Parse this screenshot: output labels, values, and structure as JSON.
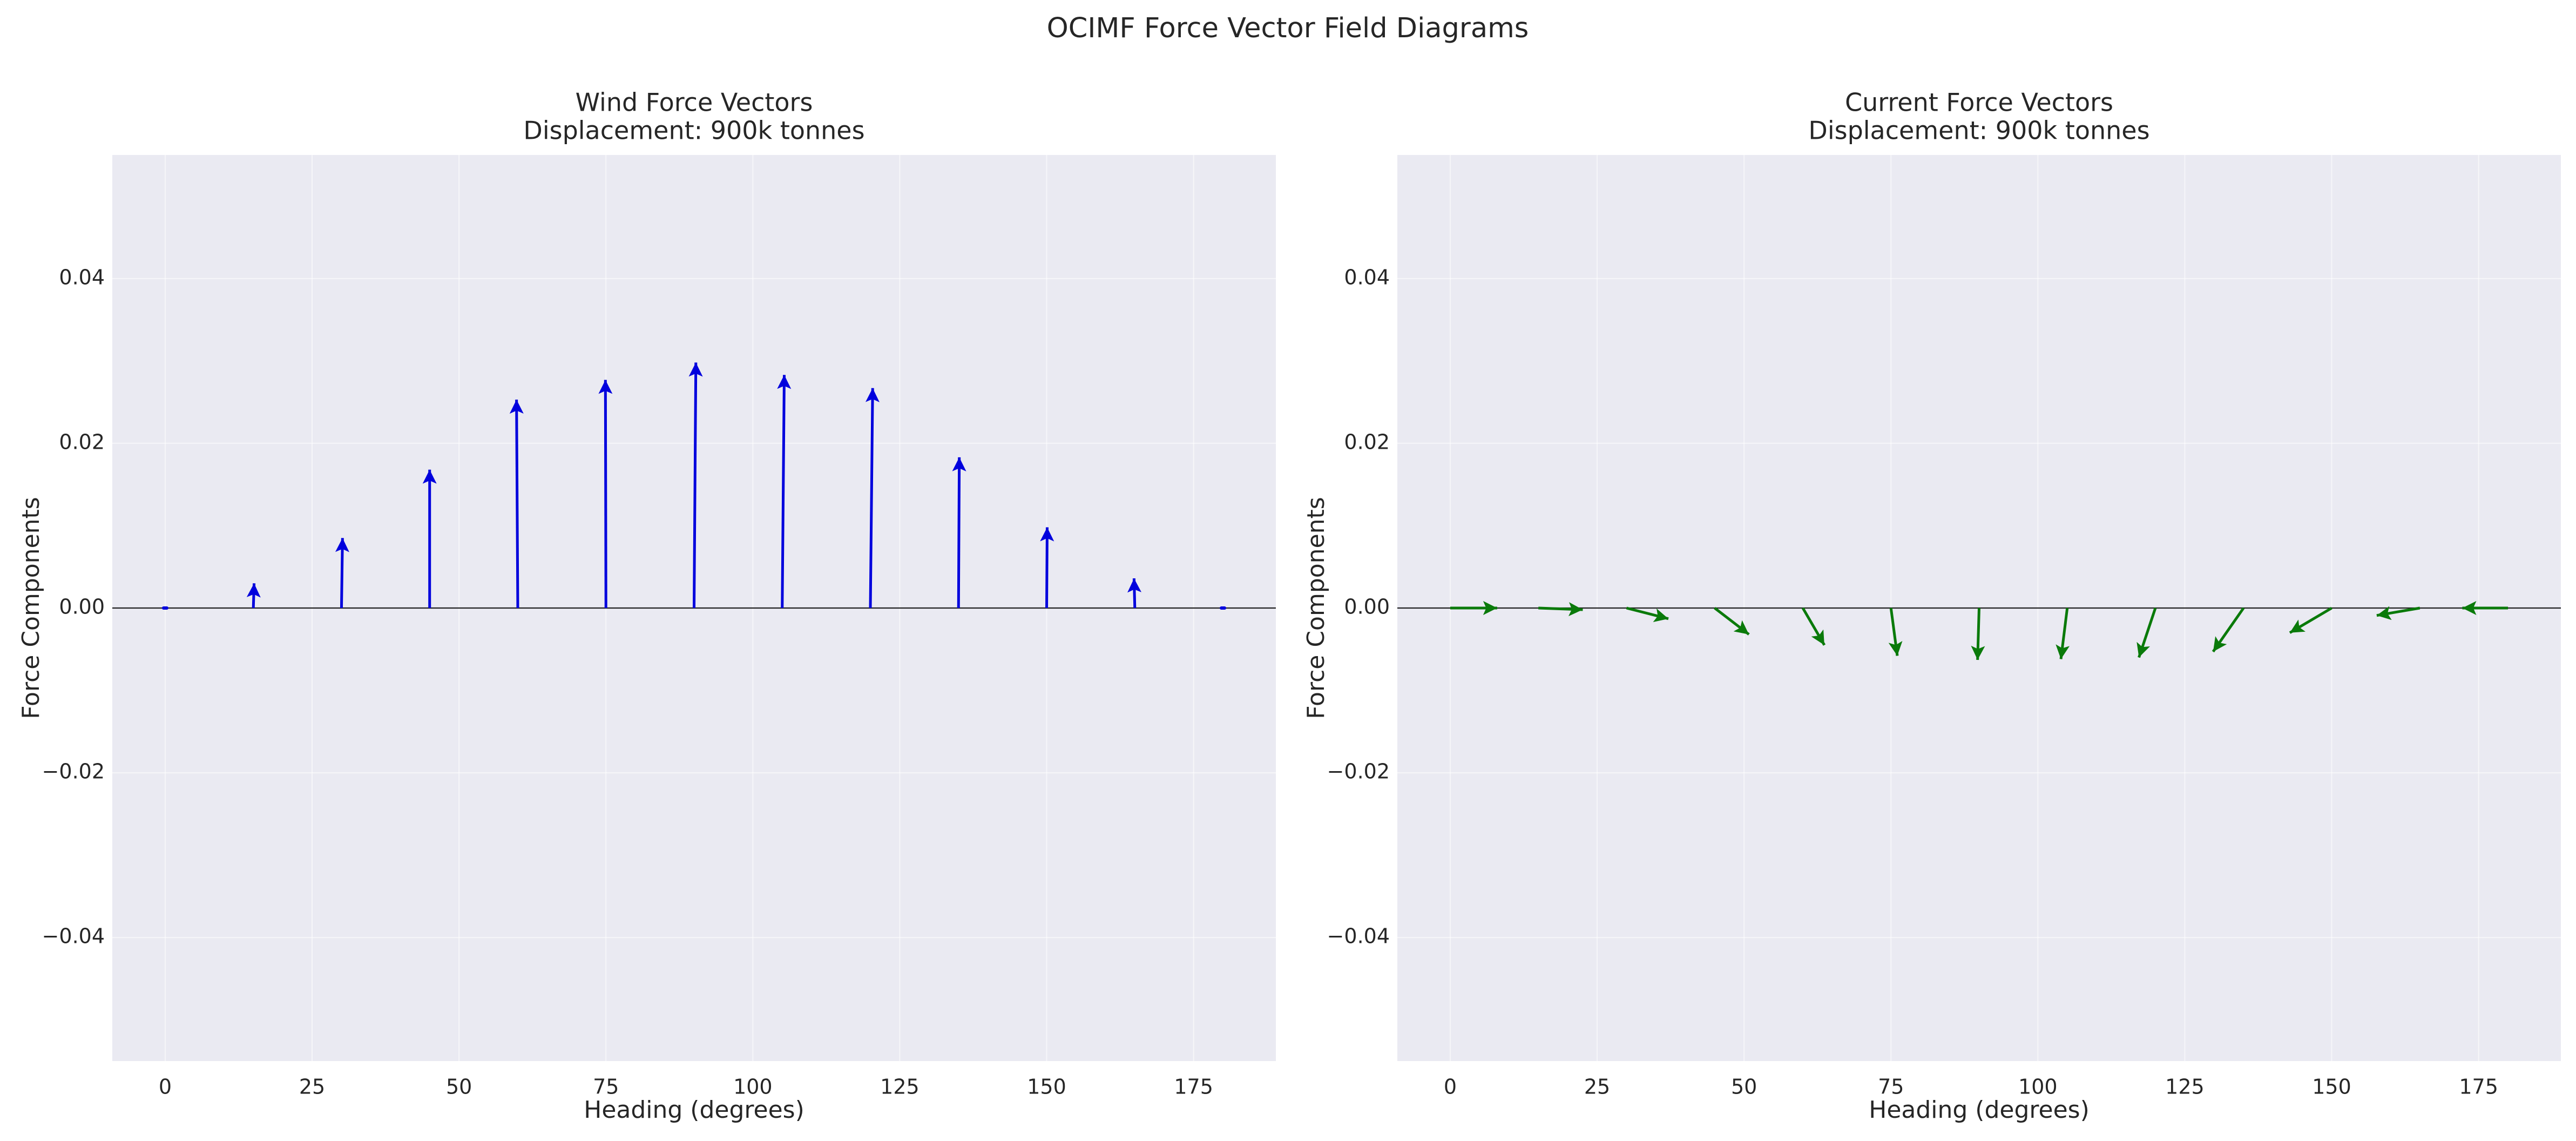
{
  "figure": {
    "suptitle": "OCIMF Force Vector Field Diagrams"
  },
  "chart_data": [
    {
      "type": "quiver",
      "title_line1": "Wind Force Vectors",
      "title_line2": "Displacement: 900k tonnes",
      "xlabel": "Heading (degrees)",
      "ylabel": "Force Components",
      "xlim": [
        -9,
        189
      ],
      "ylim": [
        -0.055,
        0.055
      ],
      "xticks": [
        0,
        25,
        50,
        75,
        100,
        125,
        150,
        175
      ],
      "xtick_labels": [
        "0",
        "25",
        "50",
        "75",
        "100",
        "125",
        "150",
        "175"
      ],
      "yticks": [
        -0.04,
        -0.02,
        0.0,
        0.02,
        0.04
      ],
      "ytick_labels": [
        "−0.04",
        "−0.02",
        "0.00",
        "0.02",
        "0.04"
      ],
      "grid": true,
      "zero_line": true,
      "color": "#0000dd",
      "vectors": [
        {
          "x": 0,
          "y": 0,
          "u": 0.6,
          "v": 0.0003
        },
        {
          "x": 15,
          "y": 0,
          "u": 0.3,
          "v": 0.003
        },
        {
          "x": 30,
          "y": 0,
          "u": 0.4,
          "v": 0.0085
        },
        {
          "x": 45,
          "y": 0,
          "u": 0.0,
          "v": 0.0168
        },
        {
          "x": 60,
          "y": 0,
          "u": -0.5,
          "v": 0.0253
        },
        {
          "x": 75,
          "y": 0,
          "u": -0.2,
          "v": 0.0277
        },
        {
          "x": 90,
          "y": 0,
          "u": 0.7,
          "v": 0.0298
        },
        {
          "x": 105,
          "y": 0,
          "u": 0.8,
          "v": 0.0283
        },
        {
          "x": 120,
          "y": 0,
          "u": 0.9,
          "v": 0.0267
        },
        {
          "x": 135,
          "y": 0,
          "u": 0.3,
          "v": 0.0183
        },
        {
          "x": 150,
          "y": 0,
          "u": 0.2,
          "v": 0.0098
        },
        {
          "x": 165,
          "y": 0,
          "u": -0.3,
          "v": 0.0036
        },
        {
          "x": 180,
          "y": 0,
          "u": -0.4,
          "v": 0.0003
        }
      ]
    },
    {
      "type": "quiver",
      "title_line1": "Current Force Vectors",
      "title_line2": "Displacement: 900k tonnes",
      "xlabel": "Heading (degrees)",
      "ylabel": "Force Components",
      "xlim": [
        -9,
        189
      ],
      "ylim": [
        -0.055,
        0.055
      ],
      "xticks": [
        0,
        25,
        50,
        75,
        100,
        125,
        150,
        175
      ],
      "xtick_labels": [
        "0",
        "25",
        "50",
        "75",
        "100",
        "125",
        "150",
        "175"
      ],
      "yticks": [
        -0.04,
        -0.02,
        0.0,
        0.02,
        0.04
      ],
      "ytick_labels": [
        "−0.04",
        "−0.02",
        "0.00",
        "0.02",
        "0.04"
      ],
      "grid": true,
      "zero_line": true,
      "color": "#0a7a0a",
      "vectors": [
        {
          "x": 0,
          "y": 0,
          "u": 18.5,
          "v": 0.0
        },
        {
          "x": 15,
          "y": 0,
          "u": 17.5,
          "v": -0.0002
        },
        {
          "x": 30,
          "y": 0,
          "u": 16.5,
          "v": -0.0013
        },
        {
          "x": 45,
          "y": 0,
          "u": 13.5,
          "v": -0.0032
        },
        {
          "x": 60,
          "y": 0,
          "u": 8.5,
          "v": -0.0045
        },
        {
          "x": 75,
          "y": 0,
          "u": 2.5,
          "v": -0.0058
        },
        {
          "x": 90,
          "y": 0,
          "u": -0.6,
          "v": -0.0063
        },
        {
          "x": 105,
          "y": 0,
          "u": -2.5,
          "v": -0.0062
        },
        {
          "x": 120,
          "y": 0,
          "u": -6.5,
          "v": -0.006
        },
        {
          "x": 135,
          "y": 0,
          "u": -12.0,
          "v": -0.0053
        },
        {
          "x": 150,
          "y": 0,
          "u": -16.5,
          "v": -0.003
        },
        {
          "x": 165,
          "y": 0,
          "u": -17.0,
          "v": -0.0009
        },
        {
          "x": 180,
          "y": 0,
          "u": -18.0,
          "v": 0.0
        }
      ]
    }
  ]
}
